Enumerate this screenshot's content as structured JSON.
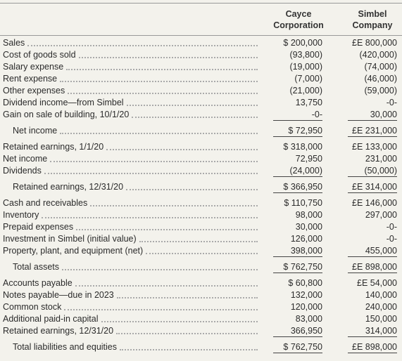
{
  "header": {
    "cayce": [
      "Cayce",
      "Corporation"
    ],
    "simbel": [
      "Simbel",
      "Company"
    ]
  },
  "sections": [
    {
      "rows": [
        {
          "label": "Sales",
          "cayce": "$ 200,000",
          "simbel": "£E 800,000"
        },
        {
          "label": "Cost of goods sold",
          "cayce": "(93,800)",
          "simbel": "(420,000)"
        },
        {
          "label": "Salary expense",
          "cayce": "(19,000)",
          "simbel": "(74,000)"
        },
        {
          "label": "Rent expense",
          "cayce": "(7,000)",
          "simbel": "(46,000)"
        },
        {
          "label": "Other expenses",
          "cayce": "(21,000)",
          "simbel": "(59,000)"
        },
        {
          "label": "Dividend income—from Simbel",
          "cayce": "13,750",
          "simbel": "-0-"
        },
        {
          "label": "Gain on sale of building, 10/1/20",
          "cayce": "-0-",
          "simbel": "30,000"
        }
      ],
      "total": {
        "label": "Net income",
        "cayce": "$ 72,950",
        "simbel": "£E 231,000"
      }
    },
    {
      "rows": [
        {
          "label": "Retained earnings, 1/1/20",
          "cayce": "$ 318,000",
          "simbel": "£E 133,000"
        },
        {
          "label": "Net income",
          "cayce": "72,950",
          "simbel": "231,000"
        },
        {
          "label": "Dividends",
          "cayce": "(24,000)",
          "simbel": "(50,000)"
        }
      ],
      "total": {
        "label": "Retained earnings, 12/31/20",
        "cayce": "$ 366,950",
        "simbel": "£E 314,000"
      }
    },
    {
      "rows": [
        {
          "label": "Cash and receivables",
          "cayce": "$ 110,750",
          "simbel": "£E 146,000"
        },
        {
          "label": "Inventory",
          "cayce": "98,000",
          "simbel": "297,000"
        },
        {
          "label": "Prepaid expenses",
          "cayce": "30,000",
          "simbel": "-0-"
        },
        {
          "label": "Investment in Simbel (initial value)",
          "cayce": "126,000",
          "simbel": "-0-"
        },
        {
          "label": "Property, plant, and equipment (net)",
          "cayce": "398,000",
          "simbel": "455,000"
        }
      ],
      "total": {
        "label": "Total assets",
        "cayce": "$ 762,750",
        "simbel": "£E 898,000"
      }
    },
    {
      "rows": [
        {
          "label": "Accounts payable",
          "cayce": "$ 60,800",
          "simbel": "£E 54,000"
        },
        {
          "label": "Notes payable—due in 2023",
          "cayce": "132,000",
          "simbel": "140,000"
        },
        {
          "label": "Common stock",
          "cayce": "120,000",
          "simbel": "240,000"
        },
        {
          "label": "Additional paid-in capital",
          "cayce": "83,000",
          "simbel": "150,000"
        },
        {
          "label": "Retained earnings, 12/31/20",
          "cayce": "366,950",
          "simbel": "314,000"
        }
      ],
      "total": {
        "label": "Total liabilities and equities",
        "cayce": "$ 762,750",
        "simbel": "£E 898,000"
      }
    }
  ]
}
